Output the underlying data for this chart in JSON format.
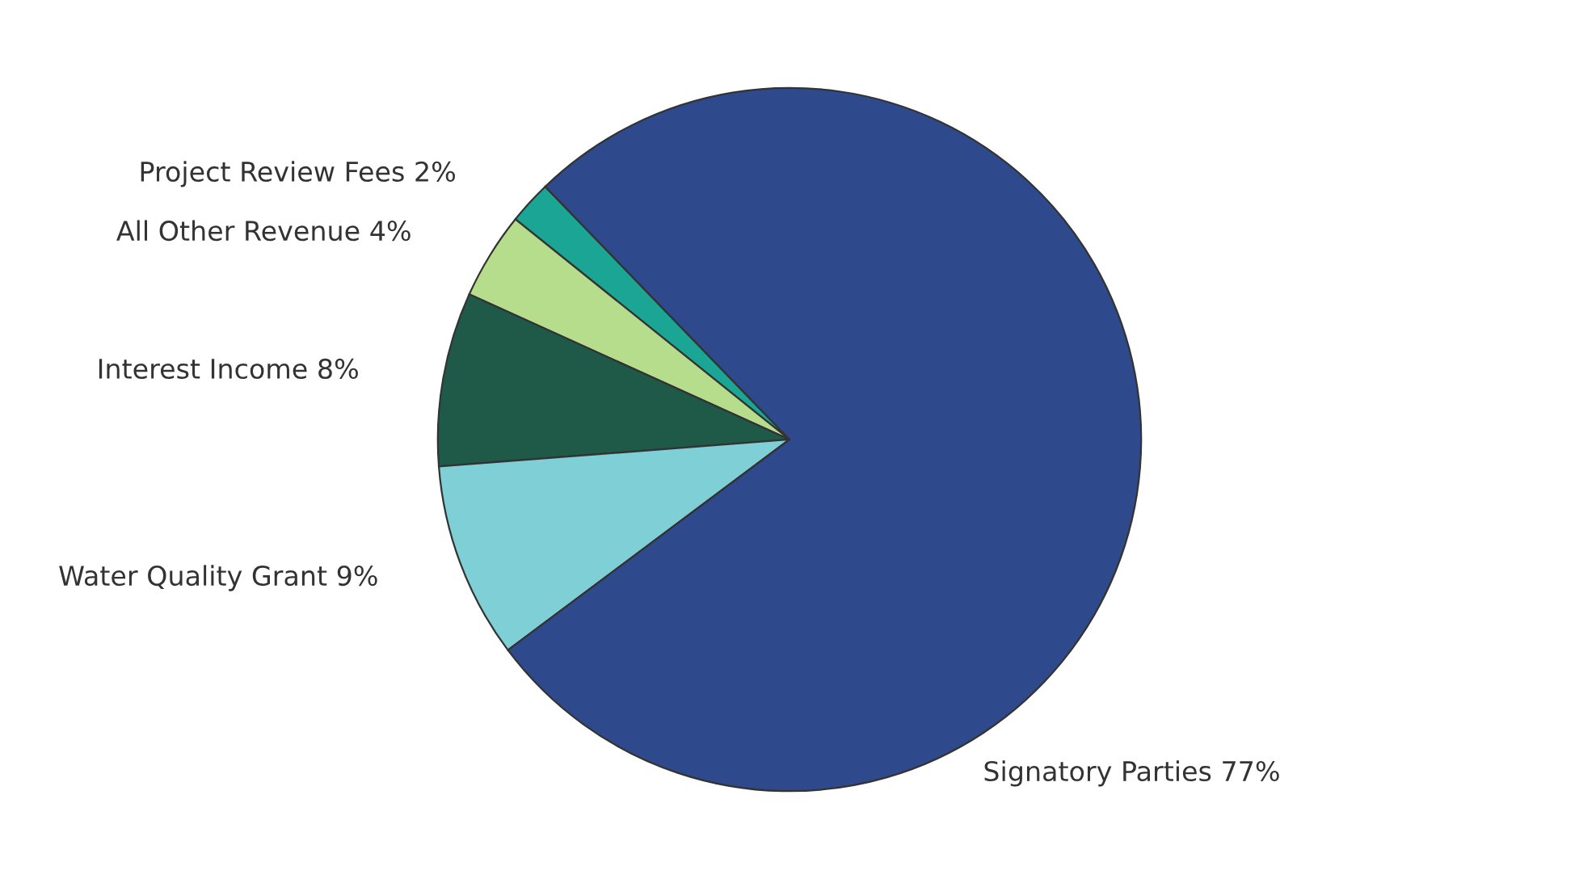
{
  "chart_data": {
    "type": "pie",
    "categories": [
      "Project Review Fees",
      "All Other Revenue",
      "Interest Income",
      "Water Quality Grant",
      "Signatory Parties"
    ],
    "values": [
      2,
      4,
      8,
      9,
      77
    ],
    "value_labels": [
      "2%",
      "4%",
      "8%",
      "9%",
      "77%"
    ],
    "colors": [
      "#1aa595",
      "#b5dd8c",
      "#1f5a48",
      "#7fcfd6",
      "#2e4a8c"
    ]
  }
}
